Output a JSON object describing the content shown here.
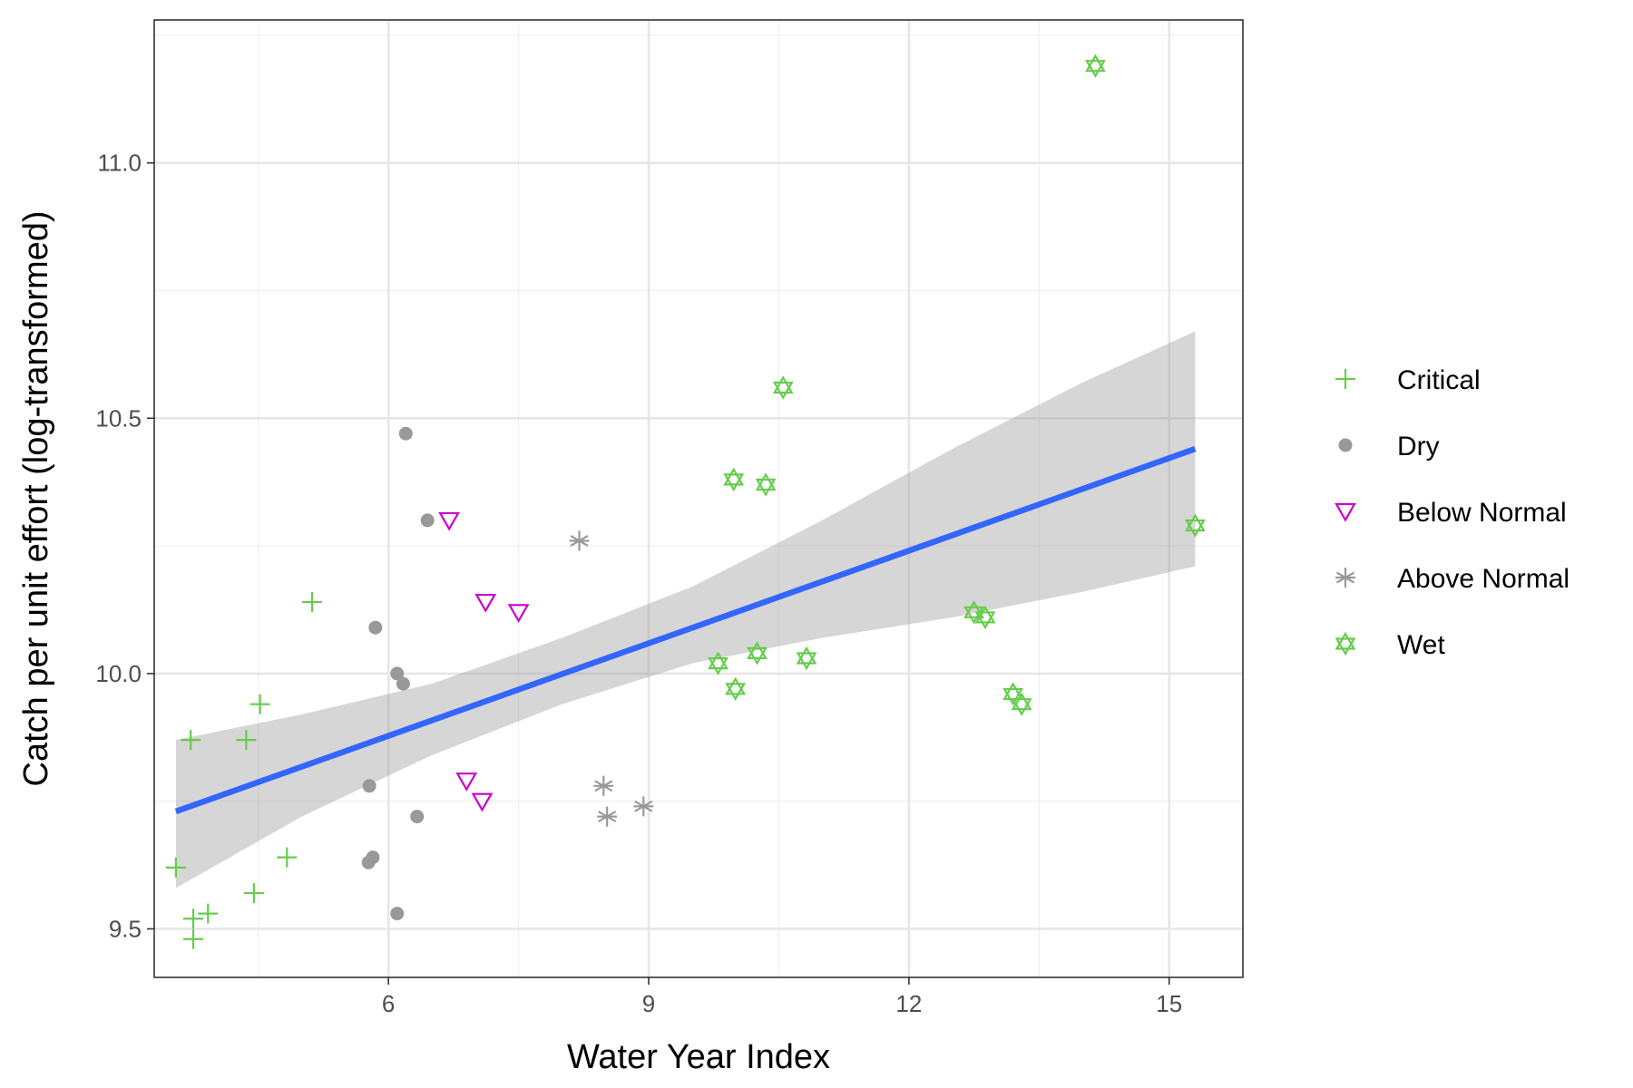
{
  "chart_data": {
    "type": "scatter",
    "xlabel": "Water Year Index",
    "ylabel": "Catch per unit effort (log-transformed)",
    "xlim": [
      3.3,
      15.85
    ],
    "ylim": [
      9.405,
      11.28
    ],
    "x_ticks": [
      6,
      9,
      12,
      15
    ],
    "y_ticks": [
      9.5,
      10.0,
      10.5,
      11.0
    ],
    "x_tick_labels": [
      "6",
      "9",
      "12",
      "15"
    ],
    "y_tick_labels": [
      "9.5",
      "10.0",
      "10.5",
      "11.0"
    ],
    "grid": true,
    "legend_position": "right",
    "series": [
      {
        "name": "Critical",
        "shape": "plus",
        "color": "#66CC4D",
        "points": [
          {
            "x": 3.55,
            "y": 9.62
          },
          {
            "x": 3.75,
            "y": 9.48
          },
          {
            "x": 3.75,
            "y": 9.52
          },
          {
            "x": 3.92,
            "y": 9.53
          },
          {
            "x": 4.45,
            "y": 9.57
          },
          {
            "x": 3.72,
            "y": 9.87
          },
          {
            "x": 4.36,
            "y": 9.87
          },
          {
            "x": 4.52,
            "y": 9.94
          },
          {
            "x": 4.83,
            "y": 9.64
          },
          {
            "x": 5.12,
            "y": 10.14
          }
        ]
      },
      {
        "name": "Dry",
        "shape": "circle",
        "color": "#999999",
        "points": [
          {
            "x": 6.2,
            "y": 10.47
          },
          {
            "x": 6.45,
            "y": 10.3
          },
          {
            "x": 5.85,
            "y": 10.09
          },
          {
            "x": 6.1,
            "y": 10.0
          },
          {
            "x": 6.17,
            "y": 9.98
          },
          {
            "x": 5.78,
            "y": 9.78
          },
          {
            "x": 6.33,
            "y": 9.72
          },
          {
            "x": 5.82,
            "y": 9.64
          },
          {
            "x": 5.77,
            "y": 9.63
          },
          {
            "x": 6.1,
            "y": 9.53
          }
        ]
      },
      {
        "name": "Below Normal",
        "shape": "triangle-down",
        "color": "#CC00CC",
        "points": [
          {
            "x": 6.7,
            "y": 10.3
          },
          {
            "x": 7.12,
            "y": 10.14
          },
          {
            "x": 7.5,
            "y": 10.12
          },
          {
            "x": 6.9,
            "y": 9.79
          },
          {
            "x": 7.08,
            "y": 9.75
          }
        ]
      },
      {
        "name": "Above Normal",
        "shape": "asterisk",
        "color": "#999999",
        "points": [
          {
            "x": 8.2,
            "y": 10.26
          },
          {
            "x": 8.48,
            "y": 9.78
          },
          {
            "x": 8.52,
            "y": 9.72
          },
          {
            "x": 8.94,
            "y": 9.74
          }
        ]
      },
      {
        "name": "Wet",
        "shape": "star-of-david",
        "color": "#66CC4D",
        "points": [
          {
            "x": 14.15,
            "y": 11.19
          },
          {
            "x": 10.55,
            "y": 10.56
          },
          {
            "x": 9.98,
            "y": 10.38
          },
          {
            "x": 10.35,
            "y": 10.37
          },
          {
            "x": 15.3,
            "y": 10.29
          },
          {
            "x": 12.75,
            "y": 10.12
          },
          {
            "x": 12.88,
            "y": 10.11
          },
          {
            "x": 9.8,
            "y": 10.02
          },
          {
            "x": 10.25,
            "y": 10.04
          },
          {
            "x": 10.82,
            "y": 10.03
          },
          {
            "x": 10.0,
            "y": 9.97
          },
          {
            "x": 13.2,
            "y": 9.96
          },
          {
            "x": 13.3,
            "y": 9.94
          }
        ]
      }
    ],
    "trend": {
      "method": "linear",
      "color": "#3366FF",
      "x": [
        3.55,
        15.3
      ],
      "y": [
        9.73,
        10.44
      ],
      "band_color": "#999999",
      "band": [
        {
          "x": 3.55,
          "lower": 9.58,
          "upper": 9.87
        },
        {
          "x": 5.0,
          "lower": 9.72,
          "upper": 9.92
        },
        {
          "x": 6.5,
          "lower": 9.84,
          "upper": 9.98
        },
        {
          "x": 8.0,
          "lower": 9.94,
          "upper": 10.07
        },
        {
          "x": 9.5,
          "lower": 10.02,
          "upper": 10.17
        },
        {
          "x": 11.0,
          "lower": 10.07,
          "upper": 10.3
        },
        {
          "x": 12.5,
          "lower": 10.11,
          "upper": 10.44
        },
        {
          "x": 14.0,
          "lower": 10.16,
          "upper": 10.57
        },
        {
          "x": 15.3,
          "lower": 10.21,
          "upper": 10.67
        }
      ]
    }
  }
}
